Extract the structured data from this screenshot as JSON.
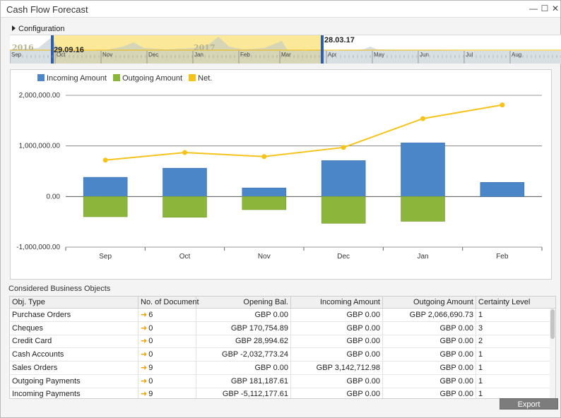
{
  "window": {
    "title": "Cash Flow Forecast",
    "minimize": "—",
    "maximize": "☐",
    "close": "✕"
  },
  "configuration": {
    "label": "Configuration"
  },
  "timeline": {
    "year_left": "2016",
    "year_mid": "2017",
    "start_date": "29.09.16",
    "end_date": "28.03.17",
    "months": [
      "Sep",
      "Oct",
      "Nov",
      "Dec",
      "Jan",
      "Feb",
      "Mar",
      "Apr",
      "May",
      "Jun",
      "Jul",
      "Aug"
    ]
  },
  "chart_data": {
    "type": "bar",
    "categories": [
      "Sep",
      "Oct",
      "Nov",
      "Dec",
      "Jan",
      "Feb"
    ],
    "series": [
      {
        "name": "Incoming Amount",
        "type": "bar",
        "color": "#4a86c8",
        "values": [
          380000,
          560000,
          170000,
          710000,
          1060000,
          280000
        ]
      },
      {
        "name": "Outgoing Amount",
        "type": "bar",
        "color": "#8cb53c",
        "values": [
          -400000,
          -410000,
          -260000,
          -530000,
          -490000,
          0
        ]
      },
      {
        "name": "Net.",
        "type": "line",
        "color": "#f5c31a",
        "values": [
          720000,
          870000,
          790000,
          970000,
          1540000,
          1810000
        ]
      }
    ],
    "ylim": [
      -1000000,
      2000000
    ],
    "yticks": [
      "2,000,000.00",
      "1,000,000.00",
      "0.00",
      "-1,000,000.00"
    ],
    "ytick_values": [
      2000000,
      1000000,
      0,
      -1000000
    ],
    "legend_position": "top-left",
    "grid": true
  },
  "objects": {
    "section_label": "Considered Business Objects",
    "headers": [
      "Obj. Type",
      "No. of Document",
      "Opening Bal.",
      "Incoming Amount",
      "Outgoing Amount",
      "Certainty Level"
    ],
    "rows": [
      {
        "type": "Purchase Orders",
        "docs": "6",
        "opening": "GBP 0.00",
        "incoming": "GBP 0.00",
        "outgoing": "GBP 2,066,690.73",
        "certainty": "1"
      },
      {
        "type": "Cheques",
        "docs": "0",
        "opening": "GBP 170,754.89",
        "incoming": "GBP 0.00",
        "outgoing": "GBP 0.00",
        "certainty": "3"
      },
      {
        "type": "Credit Card",
        "docs": "0",
        "opening": "GBP 28,994.62",
        "incoming": "GBP 0.00",
        "outgoing": "GBP 0.00",
        "certainty": "2"
      },
      {
        "type": "Cash Accounts",
        "docs": "0",
        "opening": "GBP -2,032,773.24",
        "incoming": "GBP 0.00",
        "outgoing": "GBP 0.00",
        "certainty": "1"
      },
      {
        "type": "Sales Orders",
        "docs": "9",
        "opening": "GBP 0.00",
        "incoming": "GBP 3,142,712.98",
        "outgoing": "GBP 0.00",
        "certainty": "1"
      },
      {
        "type": "Outgoing Payments",
        "docs": "0",
        "opening": "GBP 181,187.61",
        "incoming": "GBP 0.00",
        "outgoing": "GBP 0.00",
        "certainty": "1"
      },
      {
        "type": "Incoming Payments",
        "docs": "9",
        "opening": "GBP -5,112,177.61",
        "incoming": "GBP 0.00",
        "outgoing": "GBP 0.00",
        "certainty": "1"
      }
    ],
    "doc_arrow": "➜"
  },
  "footer": {
    "export_label": "Export"
  },
  "colors": {
    "incoming": "#4a86c8",
    "outgoing": "#8cb53c",
    "net": "#f5c31a",
    "timeline_highlight": "#fbe999",
    "timeline_marker": "#2f5fa8"
  }
}
